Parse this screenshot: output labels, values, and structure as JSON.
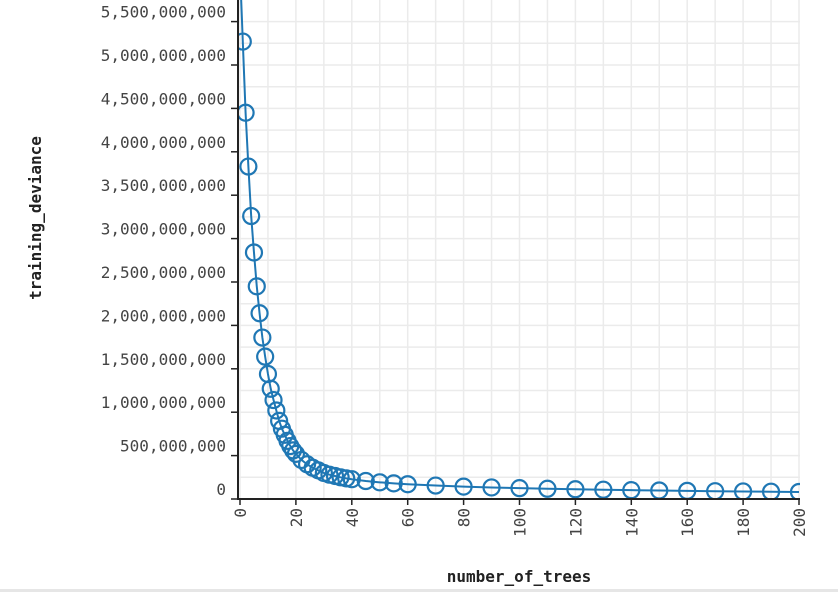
{
  "chart_data": {
    "type": "line",
    "xlabel": "number_of_trees",
    "ylabel": "training_deviance",
    "xlim": [
      0,
      200
    ],
    "ylim": [
      0,
      5600000000
    ],
    "grid": true,
    "x_ticks": [
      "0",
      "20",
      "40",
      "60",
      "80",
      "100",
      "120",
      "140",
      "160",
      "180",
      "200"
    ],
    "y_ticks": [
      "0",
      "500,000,000",
      "1,000,000,000",
      "1,500,000,000",
      "2,000,000,000",
      "2,500,000,000",
      "3,000,000,000",
      "3,500,000,000",
      "4,000,000,000",
      "4,500,000,000",
      "5,000,000,000",
      "5,500,000,000"
    ],
    "color": "#1f77b4",
    "marker": "circle-open",
    "series": [
      {
        "x": [
          0,
          1,
          2,
          3,
          4,
          5,
          6,
          7,
          8,
          9,
          10,
          11,
          12,
          13,
          14,
          15,
          16,
          17,
          18,
          19,
          20,
          22,
          24,
          26,
          28,
          30,
          32,
          34,
          36,
          38,
          40,
          45,
          50,
          55,
          60,
          70,
          80,
          90,
          100,
          110,
          120,
          130,
          140,
          150,
          160,
          170,
          180,
          190,
          200
        ],
        "y": [
          6100000000,
          5270000000,
          4450000000,
          3830000000,
          3260000000,
          2840000000,
          2450000000,
          2140000000,
          1860000000,
          1640000000,
          1440000000,
          1270000000,
          1140000000,
          1020000000,
          900000000,
          810000000,
          740000000,
          670000000,
          610000000,
          560000000,
          520000000,
          450000000,
          400000000,
          360000000,
          330000000,
          300000000,
          280000000,
          265000000,
          250000000,
          238000000,
          228000000,
          207000000,
          192000000,
          180000000,
          170000000,
          155000000,
          143000000,
          133000000,
          125000000,
          118000000,
          112000000,
          107000000,
          102000000,
          98000000,
          94000000,
          90000000,
          87000000,
          84000000,
          81000000
        ]
      }
    ]
  }
}
